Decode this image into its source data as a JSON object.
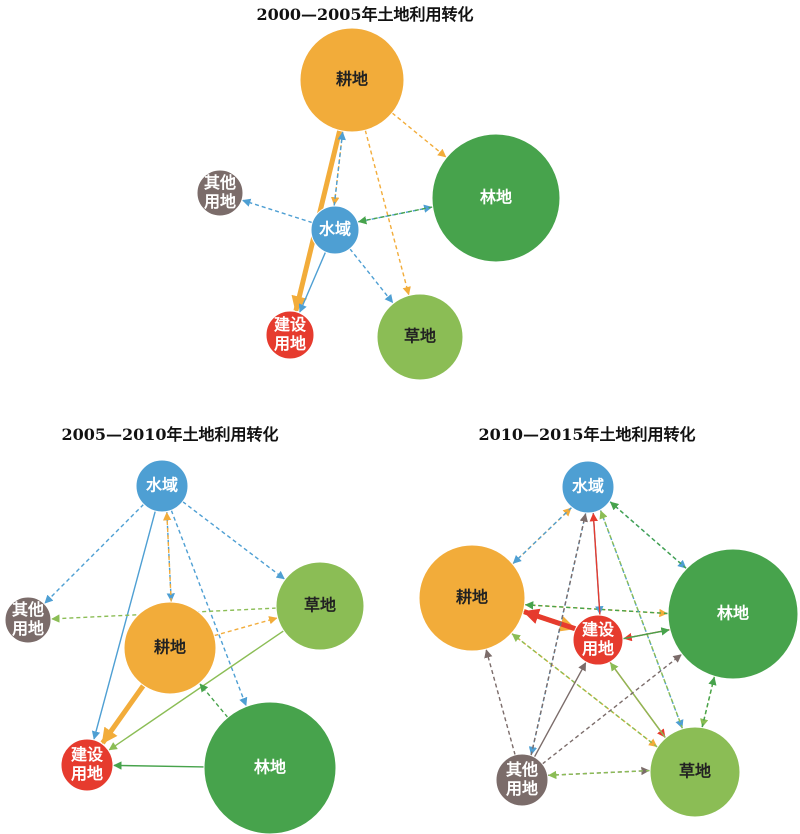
{
  "colors": {
    "cropland": "#F2AC3A",
    "forest": "#47A34C",
    "grass": "#8BBD55",
    "water": "#4E9FD3",
    "built": "#E63B2E",
    "other": "#7B6C6A"
  },
  "panels": [
    {
      "title": "2000—2005年土地利用转化",
      "nodes": [
        {
          "id": "cropland",
          "label": [
            "耕地"
          ],
          "text_color": "#222222"
        },
        {
          "id": "forest",
          "label": [
            "林地"
          ],
          "text_color": "#ffffff"
        },
        {
          "id": "water",
          "label": [
            "水域"
          ],
          "text_color": "#ffffff"
        },
        {
          "id": "other",
          "label": [
            "其他",
            "用地"
          ],
          "text_color": "#ffffff"
        },
        {
          "id": "built",
          "label": [
            "建设",
            "用地"
          ],
          "text_color": "#ffffff"
        },
        {
          "id": "grass",
          "label": [
            "草地"
          ],
          "text_color": "#222222"
        }
      ],
      "flows": [
        {
          "from": "cropland",
          "to": "built",
          "color": "cropland",
          "style": "solid",
          "weight": "thick"
        },
        {
          "from": "cropland",
          "to": "water",
          "color": "cropland",
          "style": "dashed",
          "weight": "thin"
        },
        {
          "from": "water",
          "to": "cropland",
          "color": "water",
          "style": "dashed",
          "weight": "thin"
        },
        {
          "from": "cropland",
          "to": "forest",
          "color": "cropland",
          "style": "dashed",
          "weight": "thin"
        },
        {
          "from": "cropland",
          "to": "grass",
          "color": "cropland",
          "style": "dashed",
          "weight": "thin"
        },
        {
          "from": "water",
          "to": "other",
          "color": "water",
          "style": "dashed",
          "weight": "thin"
        },
        {
          "from": "water",
          "to": "forest",
          "color": "water",
          "style": "dashed",
          "weight": "thin"
        },
        {
          "from": "forest",
          "to": "water",
          "color": "forest",
          "style": "dashed",
          "weight": "thin"
        },
        {
          "from": "water",
          "to": "grass",
          "color": "water",
          "style": "dashed",
          "weight": "thin"
        },
        {
          "from": "water",
          "to": "built",
          "color": "water",
          "style": "solid",
          "weight": "thin"
        }
      ]
    },
    {
      "title": "2005—2010年土地利用转化",
      "nodes": [
        {
          "id": "water",
          "label": [
            "水域"
          ],
          "text_color": "#ffffff"
        },
        {
          "id": "other",
          "label": [
            "其他",
            "用地"
          ],
          "text_color": "#ffffff"
        },
        {
          "id": "grass",
          "label": [
            "草地"
          ],
          "text_color": "#222222"
        },
        {
          "id": "cropland",
          "label": [
            "耕地"
          ],
          "text_color": "#222222"
        },
        {
          "id": "built",
          "label": [
            "建设",
            "用地"
          ],
          "text_color": "#ffffff"
        },
        {
          "id": "forest",
          "label": [
            "林地"
          ],
          "text_color": "#ffffff"
        }
      ],
      "flows": [
        {
          "from": "cropland",
          "to": "built",
          "color": "cropland",
          "style": "solid",
          "weight": "thick"
        },
        {
          "from": "water",
          "to": "built",
          "color": "water",
          "style": "solid",
          "weight": "thin"
        },
        {
          "from": "water",
          "to": "other",
          "color": "water",
          "style": "dashed",
          "weight": "thin"
        },
        {
          "from": "water",
          "to": "grass",
          "color": "water",
          "style": "dashed",
          "weight": "thin"
        },
        {
          "from": "water",
          "to": "cropland",
          "color": "water",
          "style": "dashed",
          "weight": "thin"
        },
        {
          "from": "cropland",
          "to": "water",
          "color": "cropland",
          "style": "dashed",
          "weight": "thin"
        },
        {
          "from": "water",
          "to": "forest",
          "color": "water",
          "style": "dashed",
          "weight": "thin"
        },
        {
          "from": "grass",
          "to": "other",
          "color": "grass",
          "style": "dashed",
          "weight": "thin"
        },
        {
          "from": "cropland",
          "to": "grass",
          "color": "cropland",
          "style": "dashed",
          "weight": "thin"
        },
        {
          "from": "grass",
          "to": "built",
          "color": "grass",
          "style": "solid",
          "weight": "thin"
        },
        {
          "from": "forest",
          "to": "built",
          "color": "forest",
          "style": "solid",
          "weight": "thin"
        },
        {
          "from": "forest",
          "to": "cropland",
          "color": "forest",
          "style": "dashed",
          "weight": "thin"
        }
      ]
    },
    {
      "title": "2010—2015年土地利用转化",
      "nodes": [
        {
          "id": "water",
          "label": [
            "水域"
          ],
          "text_color": "#ffffff"
        },
        {
          "id": "cropland",
          "label": [
            "耕地"
          ],
          "text_color": "#222222"
        },
        {
          "id": "forest",
          "label": [
            "林地"
          ],
          "text_color": "#ffffff"
        },
        {
          "id": "built",
          "label": [
            "建设",
            "用地"
          ],
          "text_color": "#ffffff"
        },
        {
          "id": "other",
          "label": [
            "其他",
            "用地"
          ],
          "text_color": "#ffffff"
        },
        {
          "id": "grass",
          "label": [
            "草地"
          ],
          "text_color": "#222222"
        }
      ],
      "flows": [
        {
          "from": "cropland",
          "to": "built",
          "color": "cropland",
          "style": "solid",
          "weight": "thick"
        },
        {
          "from": "built",
          "to": "cropland",
          "color": "built",
          "style": "solid",
          "weight": "thick"
        },
        {
          "from": "cropland",
          "to": "water",
          "color": "cropland",
          "style": "dashed",
          "weight": "thin"
        },
        {
          "from": "water",
          "to": "cropland",
          "color": "water",
          "style": "dashed",
          "weight": "thin"
        },
        {
          "from": "cropland",
          "to": "forest",
          "color": "cropland",
          "style": "dashed",
          "weight": "thin"
        },
        {
          "from": "forest",
          "to": "cropland",
          "color": "forest",
          "style": "dashed",
          "weight": "thin"
        },
        {
          "from": "cropland",
          "to": "grass",
          "color": "cropland",
          "style": "dashed",
          "weight": "thin"
        },
        {
          "from": "grass",
          "to": "cropland",
          "color": "grass",
          "style": "dashed",
          "weight": "thin"
        },
        {
          "from": "water",
          "to": "forest",
          "color": "water",
          "style": "dashed",
          "weight": "thin"
        },
        {
          "from": "forest",
          "to": "water",
          "color": "forest",
          "style": "dashed",
          "weight": "thin"
        },
        {
          "from": "water",
          "to": "built",
          "color": "water",
          "style": "solid",
          "weight": "thin"
        },
        {
          "from": "built",
          "to": "water",
          "color": "built",
          "style": "solid",
          "weight": "thin"
        },
        {
          "from": "water",
          "to": "other",
          "color": "water",
          "style": "dashed",
          "weight": "thin"
        },
        {
          "from": "other",
          "to": "water",
          "color": "other",
          "style": "dashed",
          "weight": "thin"
        },
        {
          "from": "water",
          "to": "grass",
          "color": "water",
          "style": "dashed",
          "weight": "thin"
        },
        {
          "from": "grass",
          "to": "water",
          "color": "grass",
          "style": "dashed",
          "weight": "thin"
        },
        {
          "from": "forest",
          "to": "built",
          "color": "built",
          "style": "solid",
          "weight": "thin"
        },
        {
          "from": "built",
          "to": "forest",
          "color": "forest",
          "style": "solid",
          "weight": "thin"
        },
        {
          "from": "forest",
          "to": "grass",
          "color": "grass",
          "style": "dashed",
          "weight": "thin"
        },
        {
          "from": "grass",
          "to": "forest",
          "color": "forest",
          "style": "dashed",
          "weight": "thin"
        },
        {
          "from": "built",
          "to": "grass",
          "color": "built",
          "style": "solid",
          "weight": "thin"
        },
        {
          "from": "grass",
          "to": "built",
          "color": "grass",
          "style": "solid",
          "weight": "thin"
        },
        {
          "from": "other",
          "to": "built",
          "color": "other",
          "style": "solid",
          "weight": "thin"
        },
        {
          "from": "other",
          "to": "forest",
          "color": "other",
          "style": "dashed",
          "weight": "thin"
        },
        {
          "from": "other",
          "to": "grass",
          "color": "other",
          "style": "dashed",
          "weight": "thin"
        },
        {
          "from": "grass",
          "to": "other",
          "color": "grass",
          "style": "dashed",
          "weight": "thin"
        },
        {
          "from": "other",
          "to": "cropland",
          "color": "other",
          "style": "dashed",
          "weight": "thin"
        }
      ]
    }
  ]
}
